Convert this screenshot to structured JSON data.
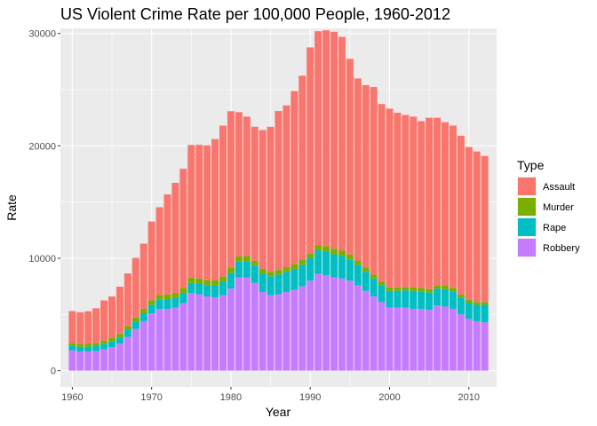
{
  "chart_data": {
    "type": "bar",
    "stacked": true,
    "title": "US Violent Crime Rate per 100,000 People, 1960-2012",
    "xlabel": "Year",
    "ylabel": "Rate",
    "xlim": [
      1958.5,
      2013.5
    ],
    "ylim": [
      -1450,
      30450
    ],
    "x_ticks": [
      1960,
      1970,
      1980,
      1990,
      2000,
      2010
    ],
    "y_ticks": [
      0,
      10000,
      20000,
      30000
    ],
    "y_tick_labels": [
      "0",
      "10000",
      "20000",
      "30000"
    ],
    "grid": true,
    "legend": {
      "title": "Type",
      "position": "right"
    },
    "x": [
      1960,
      1961,
      1962,
      1963,
      1964,
      1965,
      1966,
      1967,
      1968,
      1969,
      1970,
      1971,
      1972,
      1973,
      1974,
      1975,
      1976,
      1977,
      1978,
      1979,
      1980,
      1981,
      1982,
      1983,
      1984,
      1985,
      1986,
      1987,
      1988,
      1989,
      1990,
      1991,
      1992,
      1993,
      1994,
      1995,
      1996,
      1997,
      1998,
      1999,
      2000,
      2001,
      2002,
      2003,
      2004,
      2005,
      2006,
      2007,
      2008,
      2009,
      2010,
      2011,
      2012
    ],
    "series": [
      {
        "name": "Robbery",
        "color": "#C77CFF",
        "values": [
          1800,
          1700,
          1700,
          1750,
          1900,
          2100,
          2400,
          3000,
          3700,
          4400,
          5100,
          5500,
          5500,
          5600,
          6000,
          6900,
          6800,
          6600,
          6500,
          6700,
          7300,
          8300,
          8300,
          7800,
          7000,
          6700,
          6800,
          7000,
          7200,
          7500,
          8000,
          8600,
          8500,
          8300,
          8200,
          8000,
          7600,
          7100,
          6600,
          6100,
          5600,
          5600,
          5600,
          5500,
          5500,
          5400,
          5800,
          5700,
          5500,
          5000,
          4600,
          4400,
          4300
        ]
      },
      {
        "name": "Rape",
        "color": "#00BFC4",
        "values": [
          400,
          420,
          430,
          440,
          470,
          500,
          550,
          600,
          650,
          700,
          750,
          800,
          830,
          850,
          880,
          900,
          950,
          1000,
          1100,
          1200,
          1400,
          1400,
          1450,
          1550,
          1650,
          1700,
          1750,
          1800,
          1850,
          1900,
          2000,
          2100,
          2100,
          2050,
          2000,
          1900,
          1800,
          1700,
          1600,
          1500,
          1500,
          1500,
          1550,
          1600,
          1550,
          1550,
          1500,
          1550,
          1550,
          1500,
          1450,
          1450,
          1550
        ]
      },
      {
        "name": "Murder",
        "color": "#7CAE00",
        "values": [
          250,
          250,
          250,
          260,
          280,
          300,
          320,
          350,
          380,
          400,
          420,
          440,
          450,
          460,
          480,
          470,
          440,
          440,
          450,
          470,
          480,
          470,
          450,
          420,
          400,
          400,
          410,
          410,
          420,
          440,
          460,
          480,
          480,
          500,
          470,
          440,
          400,
          370,
          340,
          320,
          310,
          310,
          300,
          300,
          300,
          300,
          310,
          300,
          290,
          270,
          260,
          250,
          250
        ]
      },
      {
        "name": "Assault",
        "color": "#F8766D",
        "values": [
          2850,
          2830,
          2900,
          3100,
          3600,
          3700,
          4200,
          4700,
          5300,
          5800,
          7000,
          7800,
          8900,
          9800,
          10600,
          11800,
          11900,
          12000,
          12550,
          13430,
          13900,
          12830,
          12400,
          11930,
          12350,
          12900,
          14140,
          14390,
          15400,
          16400,
          18300,
          19020,
          19200,
          19300,
          19030,
          17400,
          16200,
          16230,
          16690,
          15800,
          15900,
          15540,
          15300,
          15200,
          14850,
          15250,
          14890,
          14550,
          14460,
          14130,
          13590,
          13400,
          13000
        ]
      }
    ]
  }
}
